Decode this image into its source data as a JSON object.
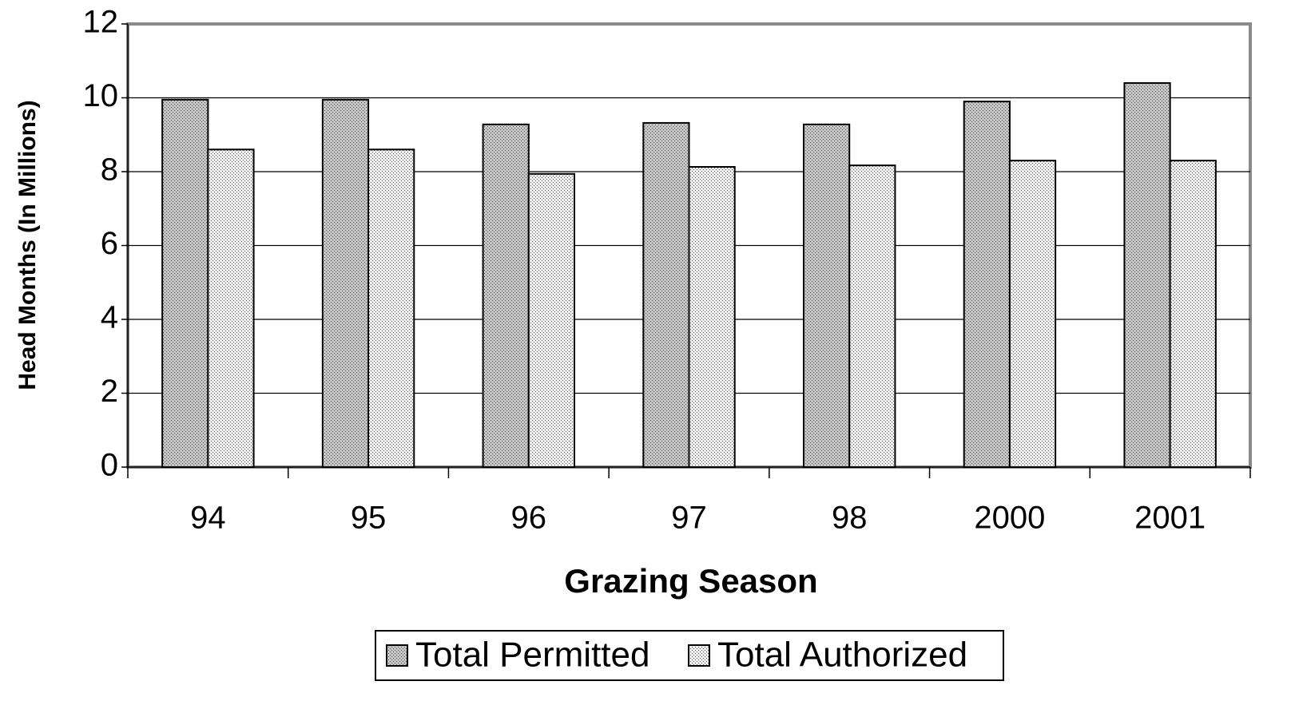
{
  "chart_data": {
    "type": "bar",
    "x_label": "Grazing Season",
    "y_label": "Head Months (In Millions)",
    "categories": [
      "94",
      "95",
      "96",
      "97",
      "98",
      "2000",
      "2001"
    ],
    "series": [
      {
        "name": "Total Permitted",
        "color": "#c4c4c4",
        "values": [
          9.95,
          9.95,
          9.28,
          9.32,
          9.28,
          9.9,
          10.4
        ]
      },
      {
        "name": "Total Authorized",
        "color": "#eeeeee",
        "values": [
          8.6,
          8.6,
          7.94,
          8.13,
          8.17,
          8.3,
          8.3
        ]
      }
    ],
    "ylim": [
      0,
      12
    ],
    "yticks": [
      0,
      2,
      4,
      6,
      8,
      10,
      12
    ],
    "grid": true,
    "legend": "bottom"
  }
}
